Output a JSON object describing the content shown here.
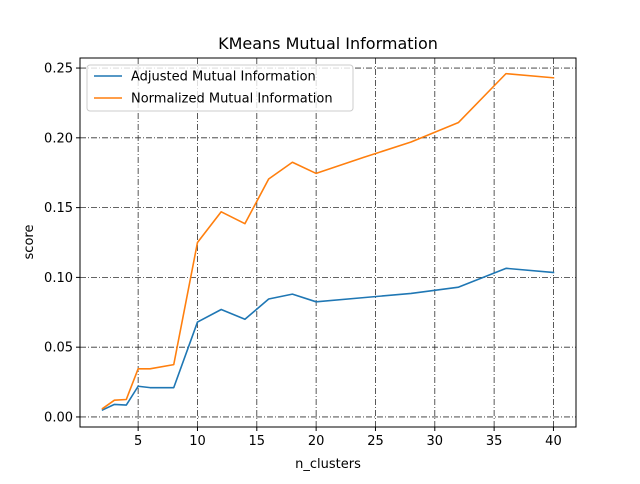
{
  "chart_data": {
    "type": "line",
    "title": "KMeans Mutual Information",
    "xlabel": "n_clusters",
    "ylabel": "score",
    "xlim": [
      0.1,
      41.9
    ],
    "ylim": [
      -0.0072,
      0.2572
    ],
    "xticks": [
      5,
      10,
      15,
      20,
      25,
      30,
      35,
      40
    ],
    "yticks": [
      0.0,
      0.05,
      0.1,
      0.15,
      0.2,
      0.25
    ],
    "xtick_labels": [
      "5",
      "10",
      "15",
      "20",
      "25",
      "30",
      "35",
      "40"
    ],
    "ytick_labels": [
      "0.00",
      "0.05",
      "0.10",
      "0.15",
      "0.20",
      "0.25"
    ],
    "grid": true,
    "legend_position": "top-left",
    "x": [
      2,
      3,
      4,
      5,
      6,
      8,
      10,
      12,
      14,
      16,
      18,
      20,
      24,
      28,
      32,
      36,
      40
    ],
    "series": [
      {
        "name": "Adjusted Mutual Information",
        "color": "#1f77b4",
        "values": [
          0.005,
          0.009,
          0.0085,
          0.022,
          0.021,
          0.021,
          0.068,
          0.077,
          0.07,
          0.0845,
          0.088,
          0.0825,
          0.0855,
          0.0885,
          0.093,
          0.1065,
          0.1035
        ]
      },
      {
        "name": "Normalized Mutual Information",
        "color": "#ff7f0e",
        "values": [
          0.006,
          0.012,
          0.0125,
          0.0345,
          0.0345,
          0.0375,
          0.125,
          0.147,
          0.1385,
          0.1705,
          0.1825,
          0.1745,
          0.186,
          0.197,
          0.211,
          0.246,
          0.243
        ]
      }
    ]
  }
}
